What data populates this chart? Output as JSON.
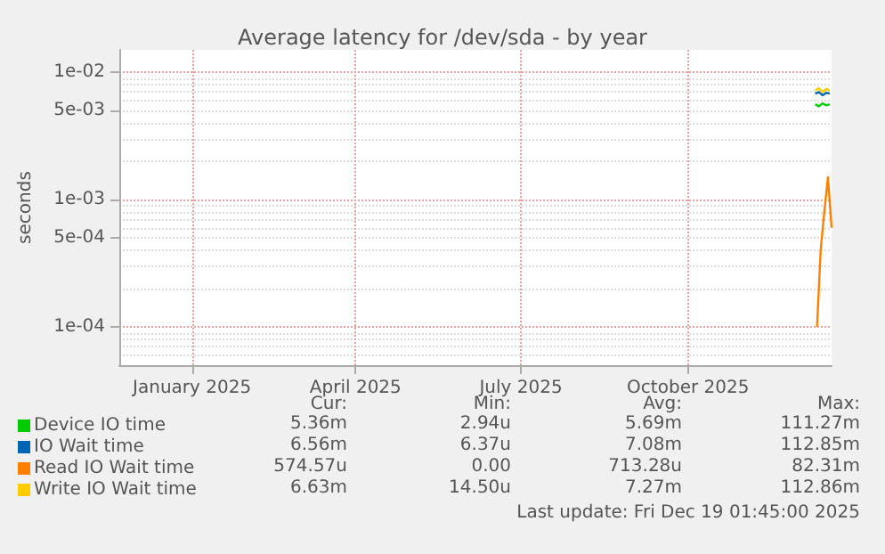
{
  "chart_data": {
    "type": "line",
    "title": "Average latency for /dev/sda - by year",
    "ylabel": "seconds",
    "log": "y",
    "grid": true,
    "legend": "bottom left",
    "marker": "none",
    "line_style": "solid",
    "xlim": [
      "2024-11-22",
      "2025-12-19"
    ],
    "xticks": [
      {
        "value": "2025-01-01",
        "label": "January 2025"
      },
      {
        "value": "2025-04-01",
        "label": "April 2025"
      },
      {
        "value": "2025-07-01",
        "label": "July 2025"
      },
      {
        "value": "2025-10-01",
        "label": "October 2025"
      }
    ],
    "ylim": [
      5e-05,
      0.015
    ],
    "yticks": [
      {
        "value": 0.0001,
        "label": "1e-04"
      },
      {
        "value": 0.0005,
        "label": "5e-04"
      },
      {
        "value": 0.001,
        "label": "1e-03"
      },
      {
        "value": 0.005,
        "label": "5e-03"
      },
      {
        "value": 0.01,
        "label": "1e-02"
      }
    ],
    "series": [
      {
        "name": "Device IO time",
        "color": "#00cc00",
        "x": [
          "2025-12-10",
          "2025-12-12",
          "2025-12-14",
          "2025-12-16",
          "2025-12-18"
        ],
        "values": [
          0.0056,
          0.0054,
          0.0057,
          0.0055,
          0.0056
        ]
      },
      {
        "name": "IO Wait time",
        "color": "#0066b3",
        "x": [
          "2025-12-10",
          "2025-12-12",
          "2025-12-14",
          "2025-12-16",
          "2025-12-18"
        ],
        "values": [
          0.0068,
          0.007,
          0.0066,
          0.0069,
          0.0068
        ]
      },
      {
        "name": "Read IO Wait time",
        "color": "#ff8000",
        "x": [
          "2025-12-11",
          "2025-12-13",
          "2025-12-15",
          "2025-12-17",
          "2025-12-19"
        ],
        "values": [
          0.0001,
          0.0004,
          0.0008,
          0.0015,
          0.0006
        ]
      },
      {
        "name": "Write IO Wait time",
        "color": "#ffcc00",
        "x": [
          "2025-12-10",
          "2025-12-12",
          "2025-12-14",
          "2025-12-16",
          "2025-12-18"
        ],
        "values": [
          0.0072,
          0.0075,
          0.007,
          0.0074,
          0.0072
        ]
      }
    ],
    "annotations": [
      "Cur:",
      "Min:",
      "Avg:",
      "Max:",
      "5.36m",
      "2.94u",
      "5.69m",
      "111.27m",
      "6.56m",
      "6.37u",
      "7.08m",
      "112.85m",
      "574.57u",
      "0.00",
      "713.28u",
      "82.31m",
      "6.63m",
      "14.50u",
      "7.27m",
      "112.86m",
      "Last update: Fri Dec 19 01:45:00 2025"
    ]
  }
}
